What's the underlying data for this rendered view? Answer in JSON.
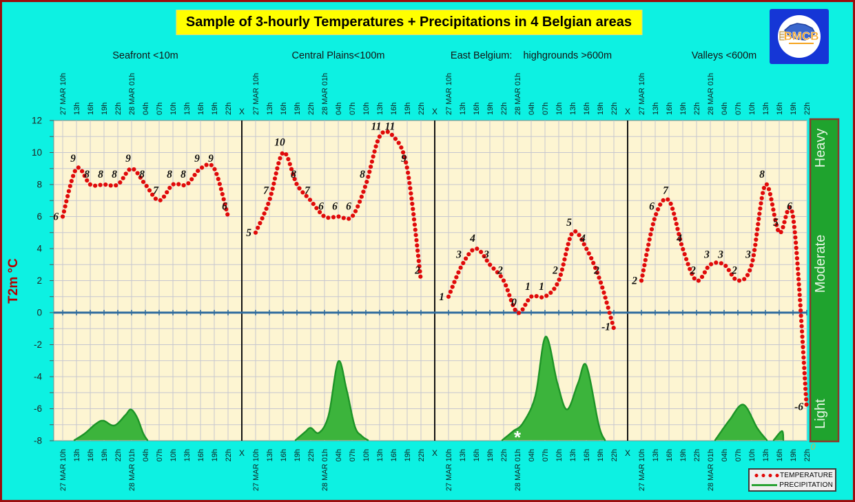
{
  "title": "Sample of 3-hourly Temperatures + Precipitations in 4 Belgian areas",
  "logo": {
    "text": "BMCB"
  },
  "chart_data": {
    "type": "line",
    "title": "Sample of 3-hourly Temperatures + Precipitations in 4 Belgian areas",
    "ylabel": "T2m °C",
    "ylim": [
      -8,
      12
    ],
    "y_ticks": [
      12,
      10,
      8,
      6,
      4,
      2,
      0,
      "-2",
      "-4",
      "-6",
      "-8"
    ],
    "x": [
      "27 MAR 10h",
      "13h",
      "16h",
      "19h",
      "22h",
      "28 MAR 01h",
      "04h",
      "07h",
      "10h",
      "13h",
      "16h",
      "19h",
      "22h"
    ],
    "panel_separator": "X",
    "grid": true,
    "zero_line": 0,
    "panels": [
      {
        "name": "Seafront <10m",
        "temperature": [
          6,
          9,
          8,
          8,
          8,
          9,
          8,
          7,
          8,
          8,
          9,
          9,
          6
        ],
        "precip_shapes": [
          [
            [
              0.85,
              0
            ],
            [
              1.6,
              0.45
            ],
            [
              2.4,
              1.05
            ],
            [
              2.95,
              1.25
            ],
            [
              3.75,
              0.95
            ],
            [
              4.55,
              1.6
            ],
            [
              4.95,
              1.95
            ],
            [
              5.4,
              1.45
            ],
            [
              5.85,
              0.45
            ],
            [
              6.15,
              0
            ]
          ]
        ]
      },
      {
        "name": "Central Plains<100m",
        "temperature": [
          5,
          7,
          10,
          8,
          7,
          6,
          6,
          6,
          8,
          11,
          11,
          9,
          2
        ],
        "precip_shapes": [
          [
            [
              2.9,
              0
            ],
            [
              3.6,
              0.55
            ],
            [
              4.0,
              0.8
            ],
            [
              4.6,
              0.5
            ],
            [
              5.3,
              1.6
            ],
            [
              6.0,
              4.95
            ],
            [
              6.6,
              3.2
            ],
            [
              7.2,
              0.9
            ],
            [
              7.7,
              0.3
            ],
            [
              8.15,
              0
            ]
          ]
        ]
      },
      {
        "name": "East Belgium:    highgrounds >600m",
        "temperature": [
          1,
          3,
          4,
          3,
          2,
          0,
          1,
          1,
          2,
          5,
          4,
          2,
          -1
        ],
        "precip_shapes": [
          [
            [
              3.9,
              0
            ],
            [
              4.7,
              0.6
            ],
            [
              5.4,
              1.1
            ],
            [
              6.3,
              2.8
            ],
            [
              7.05,
              6.5
            ],
            [
              7.9,
              3.6
            ],
            [
              8.6,
              1.95
            ],
            [
              9.4,
              3.6
            ],
            [
              10.0,
              4.7
            ],
            [
              10.9,
              1.0
            ],
            [
              11.35,
              0
            ]
          ]
        ]
      },
      {
        "name": "Valleys <600m",
        "temperature": [
          2,
          6,
          7,
          4,
          2,
          3,
          3,
          2,
          3,
          8,
          5,
          6,
          -6
        ],
        "precip_shapes": [
          [
            [
              5.35,
              0
            ],
            [
              6.4,
              1.3
            ],
            [
              7.4,
              2.25
            ],
            [
              8.4,
              0.8
            ],
            [
              9.1,
              0
            ]
          ],
          [
            [
              9.6,
              0
            ],
            [
              10.2,
              0.6
            ],
            [
              10.3,
              0.05
            ]
          ]
        ]
      }
    ],
    "snow_marker": {
      "panel": 2,
      "t": 5,
      "symbol": "*"
    },
    "precip_axis": {
      "labels": [
        "Heavy",
        "Moderate",
        "Light"
      ],
      "zero": "0"
    },
    "series_legend": [
      {
        "name": "TEMPERATURE"
      },
      {
        "name": "PRECIPITATION"
      }
    ],
    "legend_position": "bottom-right"
  },
  "colors": {
    "background": "#0df1e2",
    "plot_bg": "#fdf5d2",
    "grid": "#c6c6cf",
    "temperature": "#e00a0a",
    "value_label": "#101010",
    "precip_fill": "#3cb43c",
    "precip_stroke": "#1d9427",
    "zero_line": "#2e6b9e",
    "separator": "#101010",
    "bar_green": "#1fa32e",
    "bar_border": "#8b3a2a",
    "bar_text": "#e6f6e4",
    "axis_text": "#10201f",
    "y_label": "#b40000",
    "title_bg": "#ffff00",
    "zero_precip": "#c3b74e"
  }
}
